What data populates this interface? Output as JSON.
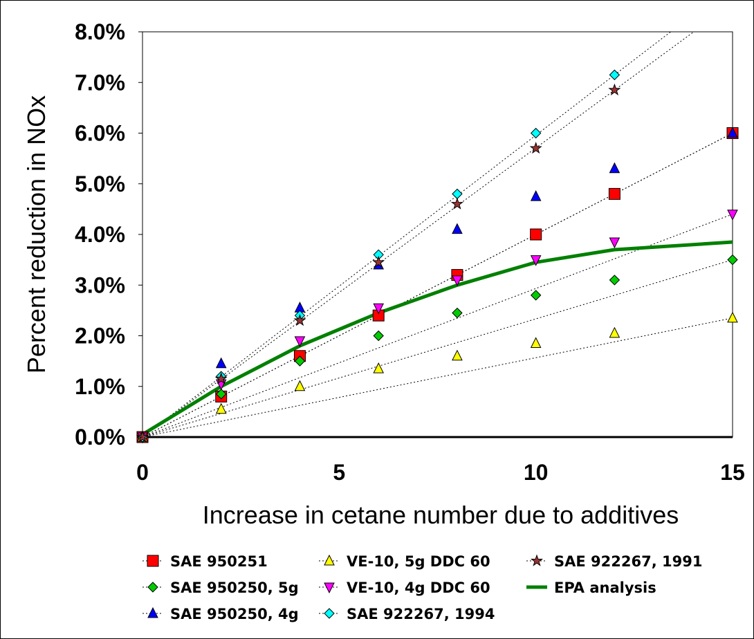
{
  "chart_data": {
    "type": "scatter",
    "title": "",
    "xlabel": "Increase in cetane number due to additives",
    "ylabel": "Percent reduction in NOx",
    "xlim": [
      0,
      15
    ],
    "ylim": [
      0,
      8
    ],
    "x_ticks": [
      "0",
      "5",
      "10",
      "15"
    ],
    "y_ticks": [
      "0.0%",
      "1.0%",
      "2.0%",
      "3.0%",
      "4.0%",
      "5.0%",
      "6.0%",
      "7.0%",
      "8.0%"
    ],
    "grid": false,
    "legend_position": "bottom",
    "series": [
      {
        "name": "SAE 950251",
        "marker": "square",
        "color": "#ff0000",
        "x": [
          0,
          2,
          4,
          6,
          8,
          10,
          12,
          15
        ],
        "y": [
          0,
          0.8,
          1.6,
          2.4,
          3.2,
          4.0,
          4.8,
          6.0
        ]
      },
      {
        "name": "SAE 950250, 5g",
        "marker": "diamond",
        "color": "#00cc00",
        "x": [
          0,
          2,
          4,
          6,
          8,
          10,
          12,
          15
        ],
        "y": [
          0,
          0.85,
          1.5,
          2.0,
          2.45,
          2.8,
          3.1,
          3.5
        ]
      },
      {
        "name": "SAE 950250, 4g",
        "marker": "triangle-up",
        "color": "#0000ff",
        "x": [
          0,
          2,
          4,
          6,
          8,
          10,
          12,
          15
        ],
        "y": [
          0,
          1.45,
          2.55,
          3.4,
          4.1,
          4.75,
          5.3,
          6.0
        ]
      },
      {
        "name": "VE-10, 5g DDC 60",
        "marker": "triangle-up",
        "color": "#ffff00",
        "x": [
          0,
          2,
          4,
          6,
          8,
          10,
          12,
          15
        ],
        "y": [
          0,
          0.55,
          1.0,
          1.35,
          1.6,
          1.85,
          2.05,
          2.35
        ]
      },
      {
        "name": "VE-10, 4g DDC 60",
        "marker": "triangle-down",
        "color": "#ff00ff",
        "x": [
          0,
          2,
          4,
          6,
          8,
          10,
          12,
          15
        ],
        "y": [
          0,
          1.05,
          1.9,
          2.55,
          3.1,
          3.5,
          3.85,
          4.4
        ]
      },
      {
        "name": "SAE 922267, 1994",
        "marker": "diamond",
        "color": "#00ffff",
        "x": [
          0,
          2,
          4,
          6,
          8,
          10,
          12
        ],
        "y": [
          0,
          1.2,
          2.4,
          3.6,
          4.8,
          6.0,
          7.15
        ]
      },
      {
        "name": "SAE 922267, 1991",
        "marker": "star",
        "color": "#993333",
        "x": [
          0,
          2,
          4,
          6,
          8,
          10,
          12
        ],
        "y": [
          0,
          1.15,
          2.3,
          3.45,
          4.6,
          5.7,
          6.85
        ]
      },
      {
        "name": "EPA analysis",
        "marker": "line",
        "color": "#008000",
        "x": [
          0,
          2,
          4,
          6,
          8,
          10,
          12,
          15
        ],
        "y": [
          0.05,
          1.0,
          1.8,
          2.45,
          3.0,
          3.45,
          3.7,
          3.85
        ]
      }
    ]
  }
}
